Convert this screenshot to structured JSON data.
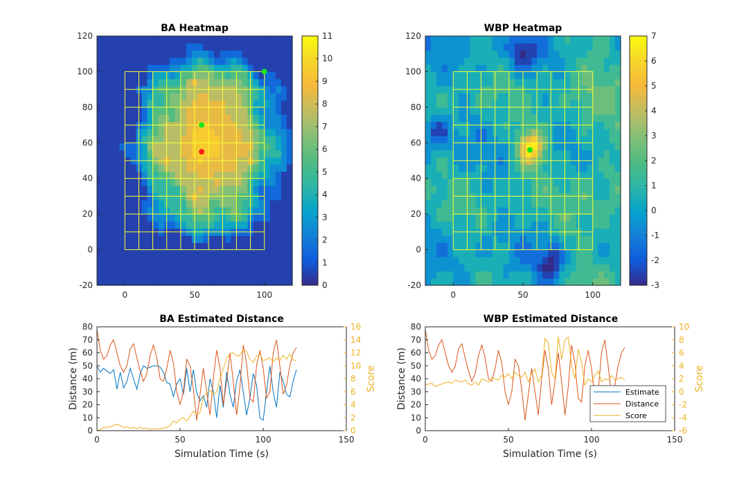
{
  "chart_data": [
    {
      "type": "heatmap",
      "title": "BA Heatmap",
      "xlim": [
        -20,
        120
      ],
      "ylim": [
        -20,
        120
      ],
      "xticks": [
        0,
        50,
        100
      ],
      "yticks": [
        -20,
        0,
        20,
        40,
        60,
        80,
        100,
        120
      ],
      "colorbar": {
        "min": 0,
        "max": 11,
        "ticks": [
          0,
          1,
          2,
          3,
          4,
          5,
          6,
          7,
          8,
          9,
          10,
          11
        ]
      },
      "field": {
        "background": 0.6,
        "peak": 9.5,
        "center": [
          60,
          60
        ],
        "plateau_radius": 28,
        "falloff_radius": 58
      },
      "grid": {
        "x": [
          0,
          100
        ],
        "y": [
          0,
          100
        ],
        "step": 10,
        "color": "#ffff33"
      },
      "markers": [
        {
          "x": 55,
          "y": 70,
          "color": "#19e619"
        },
        {
          "x": 55,
          "y": 55,
          "color": "#ff1a1a"
        },
        {
          "x": 100,
          "y": 100,
          "color": "#19e619"
        }
      ]
    },
    {
      "type": "heatmap",
      "title": "WBP Heatmap",
      "xlim": [
        -20,
        120
      ],
      "ylim": [
        -20,
        120
      ],
      "xticks": [
        0,
        50,
        100
      ],
      "yticks": [
        -20,
        0,
        20,
        40,
        60,
        80,
        100,
        120
      ],
      "colorbar": {
        "min": -3,
        "max": 7,
        "ticks": [
          -3,
          -2,
          -1,
          0,
          1,
          2,
          3,
          4,
          5,
          6,
          7
        ]
      },
      "field": {
        "background": 0.3,
        "peak": 6.5,
        "center": [
          56,
          57
        ],
        "peak_radius": 7
      },
      "grid": {
        "x": [
          0,
          100
        ],
        "y": [
          0,
          100
        ],
        "step": 10,
        "color": "#ffff33"
      },
      "markers": [
        {
          "x": 55,
          "y": 56,
          "color": "#19e619"
        }
      ]
    },
    {
      "type": "line",
      "title": "BA Estimated Distance",
      "xlabel": "Simulation Time (s)",
      "ylabel": "Distance (m)",
      "y2label": "Score",
      "xlim": [
        0,
        150
      ],
      "ylim": [
        0,
        80
      ],
      "y2lim": [
        0,
        16
      ],
      "xticks": [
        0,
        50,
        100,
        150
      ],
      "yticks": [
        0,
        10,
        20,
        30,
        40,
        50,
        60,
        70,
        80
      ],
      "y2ticks": [
        0,
        2,
        4,
        6,
        8,
        10,
        12,
        14,
        16
      ],
      "x": [
        0,
        2,
        4,
        6,
        8,
        10,
        12,
        14,
        16,
        18,
        20,
        22,
        24,
        26,
        28,
        30,
        32,
        34,
        36,
        38,
        40,
        42,
        44,
        46,
        48,
        50,
        52,
        54,
        56,
        58,
        60,
        62,
        64,
        66,
        68,
        70,
        72,
        74,
        76,
        78,
        80,
        82,
        84,
        86,
        88,
        90,
        92,
        94,
        96,
        98,
        100,
        102,
        104,
        106,
        108,
        110,
        112,
        114,
        116,
        118,
        120
      ],
      "series": [
        {
          "values": [
            50,
            45,
            48,
            46,
            44,
            47,
            32,
            45,
            33,
            38,
            48,
            40,
            32,
            44,
            50,
            48,
            49,
            50,
            50,
            49,
            45,
            37,
            36,
            26,
            36,
            40,
            28,
            48,
            30,
            47,
            29,
            23,
            27,
            18,
            40,
            30,
            10,
            35,
            18,
            45,
            28,
            18,
            38,
            47,
            30,
            12,
            25,
            44,
            35,
            10,
            8,
            30,
            50,
            30,
            18,
            45,
            38,
            28,
            26,
            38,
            47
          ],
          "color": "#0072bd",
          "axis": "left"
        },
        {
          "values": [
            78,
            62,
            55,
            58,
            66,
            70,
            60,
            50,
            45,
            50,
            63,
            67,
            56,
            46,
            38,
            44,
            58,
            66,
            56,
            40,
            38,
            48,
            62,
            52,
            30,
            20,
            30,
            55,
            50,
            32,
            8,
            28,
            48,
            30,
            12,
            40,
            62,
            48,
            20,
            38,
            60,
            38,
            12,
            34,
            66,
            52,
            25,
            22,
            50,
            62,
            48,
            25,
            30,
            60,
            70,
            50,
            28,
            35,
            50,
            60,
            64
          ],
          "color": "#d95319",
          "axis": "left"
        },
        {
          "values": [
            0,
            0.2,
            0.5,
            0.5,
            0.6,
            0.8,
            1.0,
            0.8,
            0.5,
            0.6,
            0.4,
            0.5,
            0.3,
            0.5,
            0.3,
            0.4,
            0.2,
            0.3,
            0.3,
            0.3,
            0.4,
            0.5,
            0.8,
            1.5,
            1.2,
            1.8,
            2.0,
            1.5,
            2.2,
            3.0,
            2.5,
            2.8,
            5.2,
            5.8,
            6.2,
            5.5,
            6.0,
            8.0,
            9.5,
            11.2,
            11.8,
            12.0,
            11.5,
            11.6,
            12.5,
            12.2,
            11.0,
            10.5,
            11.5,
            11.8,
            10.8,
            11.0,
            11.2,
            10.6,
            11.2,
            10.8,
            11.6,
            11.0,
            11.8,
            10.9,
            10.8
          ],
          "color": "#edb120",
          "axis": "right"
        }
      ]
    },
    {
      "type": "line",
      "title": "WBP Estimated Distance",
      "xlabel": "Simulation Time (s)",
      "ylabel": "Distance (m)",
      "y2label": "Score",
      "xlim": [
        0,
        150
      ],
      "ylim": [
        0,
        80
      ],
      "y2lim": [
        -6,
        10
      ],
      "xticks": [
        0,
        50,
        100,
        150
      ],
      "yticks": [
        0,
        10,
        20,
        30,
        40,
        50,
        60,
        70,
        80
      ],
      "y2ticks": [
        -6,
        -4,
        -2,
        0,
        2,
        4,
        6,
        8,
        10
      ],
      "legend": {
        "position": "bottom-right",
        "entries": [
          "Estimate",
          "Distance",
          "Score"
        ],
        "colors": [
          "#0072bd",
          "#d95319",
          "#edb120"
        ]
      },
      "x": [
        0,
        2,
        4,
        6,
        8,
        10,
        12,
        14,
        16,
        18,
        20,
        22,
        24,
        26,
        28,
        30,
        32,
        34,
        36,
        38,
        40,
        42,
        44,
        46,
        48,
        50,
        52,
        54,
        56,
        58,
        60,
        62,
        64,
        66,
        68,
        70,
        72,
        74,
        76,
        78,
        80,
        82,
        84,
        86,
        88,
        90,
        92,
        94,
        96,
        98,
        100,
        102,
        104,
        106,
        108,
        110,
        112,
        114,
        116,
        118,
        120
      ],
      "series": [
        {
          "values": [
            78,
            62,
            55,
            58,
            66,
            70,
            60,
            50,
            45,
            50,
            63,
            67,
            56,
            46,
            38,
            44,
            58,
            66,
            56,
            40,
            38,
            48,
            62,
            52,
            30,
            20,
            30,
            55,
            50,
            32,
            8,
            28,
            48,
            30,
            12,
            40,
            62,
            48,
            20,
            38,
            60,
            38,
            12,
            34,
            66,
            52,
            25,
            22,
            50,
            62,
            48,
            25,
            30,
            60,
            70,
            50,
            28,
            35,
            50,
            60,
            64
          ],
          "color": "#d95319",
          "axis": "left"
        },
        {
          "values": [
            1.0,
            1.2,
            1.3,
            0.8,
            1.0,
            1.2,
            1.4,
            1.5,
            1.3,
            1.8,
            1.6,
            1.5,
            1.8,
            1.2,
            1.0,
            1.5,
            1.0,
            2.0,
            1.8,
            1.5,
            2.2,
            2.0,
            1.8,
            2.5,
            2.2,
            2.8,
            2.0,
            3.0,
            2.5,
            2.2,
            3.0,
            1.5,
            2.8,
            3.5,
            1.5,
            2.5,
            8.2,
            7.5,
            3.0,
            2.0,
            8.5,
            5.0,
            8.0,
            8.4,
            4.0,
            2.0,
            6.5,
            4.5,
            1.0,
            2.0,
            1.5,
            2.5,
            3.2,
            1.5,
            2.0,
            1.8,
            2.5,
            1.8,
            2.0,
            2.2,
            1.8
          ],
          "color": "#edb120",
          "axis": "right"
        }
      ]
    }
  ]
}
